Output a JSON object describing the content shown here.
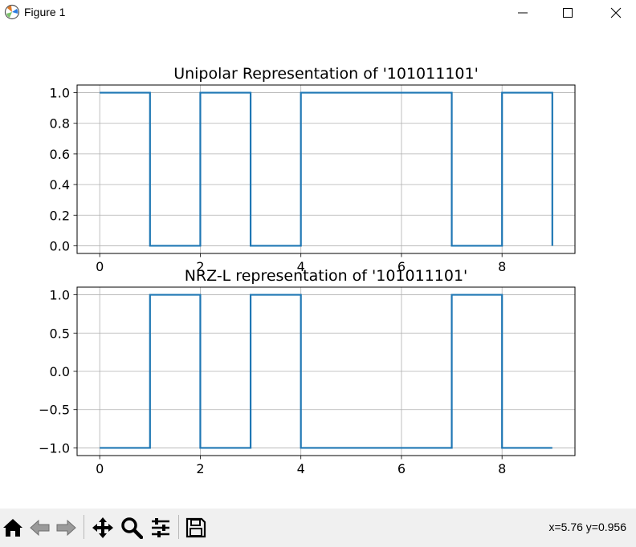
{
  "window": {
    "title": "Figure 1"
  },
  "toolbar": {
    "buttons": [
      "home-icon",
      "back-icon",
      "forward-icon",
      "pan-icon",
      "zoom-icon",
      "configure-subplots-icon",
      "save-icon"
    ],
    "coords": "x=5.76 y=0.956"
  },
  "colors": {
    "line": "#1f77b4",
    "grid": "#b0b0b0",
    "toolbar_bg": "#f0f0f0"
  },
  "chart_data": [
    {
      "type": "line",
      "drawstyle": "steps-post",
      "title": "Unipolar Representation of '101011101'",
      "xlabel": "",
      "ylabel": "",
      "x": [
        0,
        1,
        2,
        3,
        4,
        5,
        6,
        7,
        8,
        9
      ],
      "series": [
        {
          "values": [
            1,
            0,
            1,
            0,
            1,
            1,
            1,
            0,
            1,
            0
          ]
        }
      ],
      "xlim": [
        -0.45,
        9.45
      ],
      "ylim": [
        -0.05,
        1.05
      ],
      "xticks": [
        0,
        2,
        4,
        6,
        8
      ],
      "yticks": [
        0.0,
        0.2,
        0.4,
        0.6,
        0.8,
        1.0
      ],
      "ytick_labels": [
        "0.0",
        "0.2",
        "0.4",
        "0.6",
        "0.8",
        "1.0"
      ],
      "grid": true
    },
    {
      "type": "line",
      "drawstyle": "steps-post",
      "title": "NRZ-L representation of '101011101'",
      "xlabel": "",
      "ylabel": "",
      "x": [
        0,
        1,
        2,
        3,
        4,
        5,
        6,
        7,
        8,
        9
      ],
      "series": [
        {
          "values": [
            -1,
            1,
            -1,
            1,
            -1,
            -1,
            -1,
            1,
            -1,
            -1
          ]
        }
      ],
      "xlim": [
        -0.45,
        9.45
      ],
      "ylim": [
        -1.1,
        1.1
      ],
      "xticks": [
        0,
        2,
        4,
        6,
        8
      ],
      "yticks": [
        -1.0,
        -0.5,
        0.0,
        0.5,
        1.0
      ],
      "ytick_labels": [
        "−1.0",
        "−0.5",
        "0.0",
        "0.5",
        "1.0"
      ],
      "grid": true
    }
  ]
}
